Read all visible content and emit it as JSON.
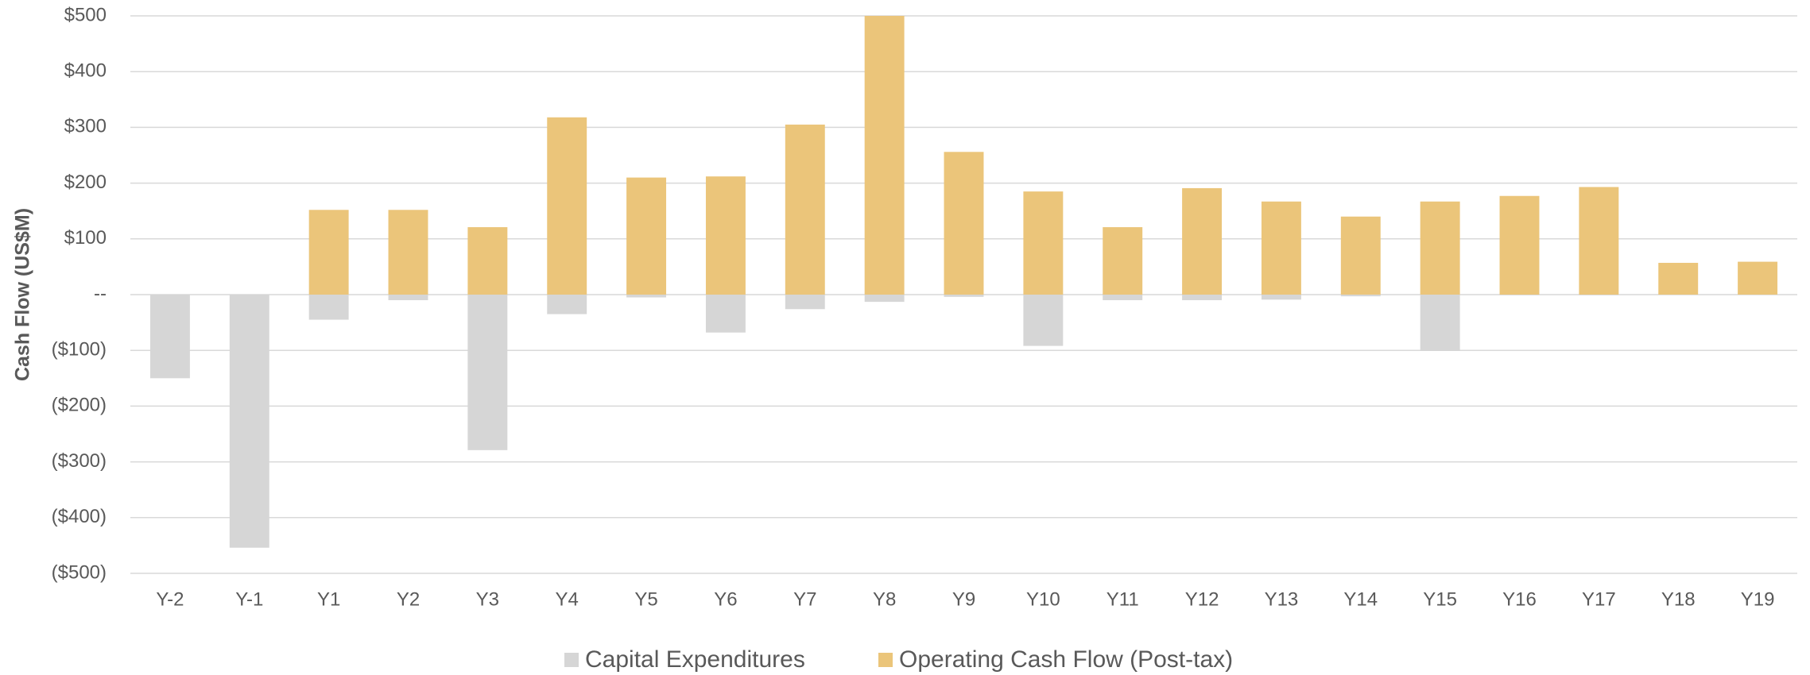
{
  "chart_data": {
    "type": "bar",
    "y_label": "Cash Flow (US$M)",
    "categories": [
      "Y-2",
      "Y-1",
      "Y1",
      "Y2",
      "Y3",
      "Y4",
      "Y5",
      "Y6",
      "Y7",
      "Y8",
      "Y9",
      "Y10",
      "Y11",
      "Y12",
      "Y13",
      "Y14",
      "Y15",
      "Y16",
      "Y17",
      "Y18",
      "Y19"
    ],
    "series": [
      {
        "name": "Capital Expenditures",
        "color": "#d6d6d6",
        "values": [
          -150,
          -454,
          -45,
          -10,
          -279,
          -35,
          -5,
          -68,
          -26,
          -13,
          -4,
          -92,
          -10,
          -10,
          -9,
          -3,
          -101,
          -1,
          -1,
          0,
          0
        ]
      },
      {
        "name": "Operating Cash Flow (Post-tax)",
        "color": "#ebc57a",
        "values": [
          0,
          0,
          152,
          152,
          121,
          318,
          210,
          212,
          305,
          500,
          256,
          185,
          121,
          191,
          167,
          140,
          167,
          177,
          193,
          57,
          59
        ]
      }
    ],
    "ylim": [
      -500,
      500
    ],
    "yticks": [
      {
        "value": -500,
        "label": "($500)"
      },
      {
        "value": -400,
        "label": "($400)"
      },
      {
        "value": -300,
        "label": "($300)"
      },
      {
        "value": -200,
        "label": "($200)"
      },
      {
        "value": -100,
        "label": "($100)"
      },
      {
        "value": 0,
        "label": "--"
      },
      {
        "value": 100,
        "label": "$100"
      },
      {
        "value": 200,
        "label": "$200"
      },
      {
        "value": 300,
        "label": "$300"
      },
      {
        "value": 400,
        "label": "$400"
      },
      {
        "value": 500,
        "label": "$500"
      }
    ],
    "grid": true,
    "legend": "bottom"
  }
}
